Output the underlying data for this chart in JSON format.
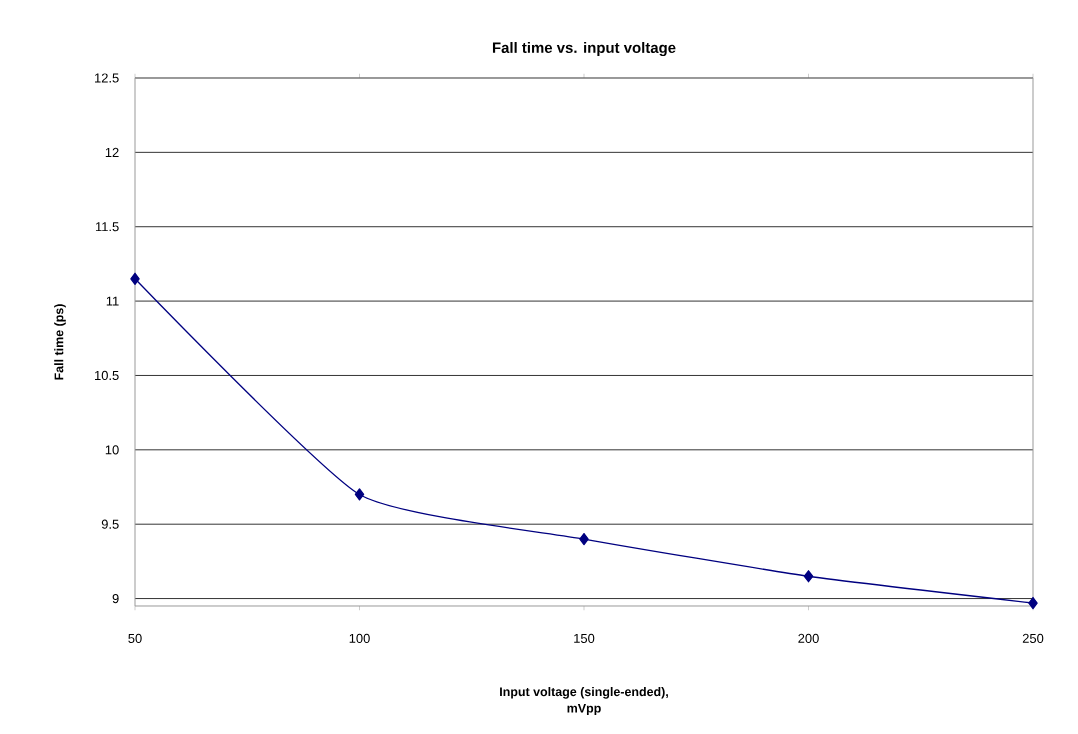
{
  "chart_data": {
    "type": "line",
    "title": "Fall time vs. input voltage",
    "xlabel": "Input voltage (single-ended),\nmVpp",
    "ylabel": "Fall time (ps)",
    "x": [
      50,
      100,
      150,
      200,
      250
    ],
    "series": [
      {
        "color": "#000080",
        "values": [
          11.15,
          9.7,
          9.4,
          9.15,
          8.97
        ]
      }
    ],
    "xlim": [
      50,
      250
    ],
    "xticks": [
      50,
      100,
      150,
      200,
      250
    ],
    "ylim": [
      8.95,
      12.5
    ],
    "yticks": [
      9,
      9.5,
      10,
      10.5,
      11,
      11.5,
      12,
      12.5
    ],
    "grid": "y",
    "marker": "diamond",
    "line_style": "solid"
  }
}
